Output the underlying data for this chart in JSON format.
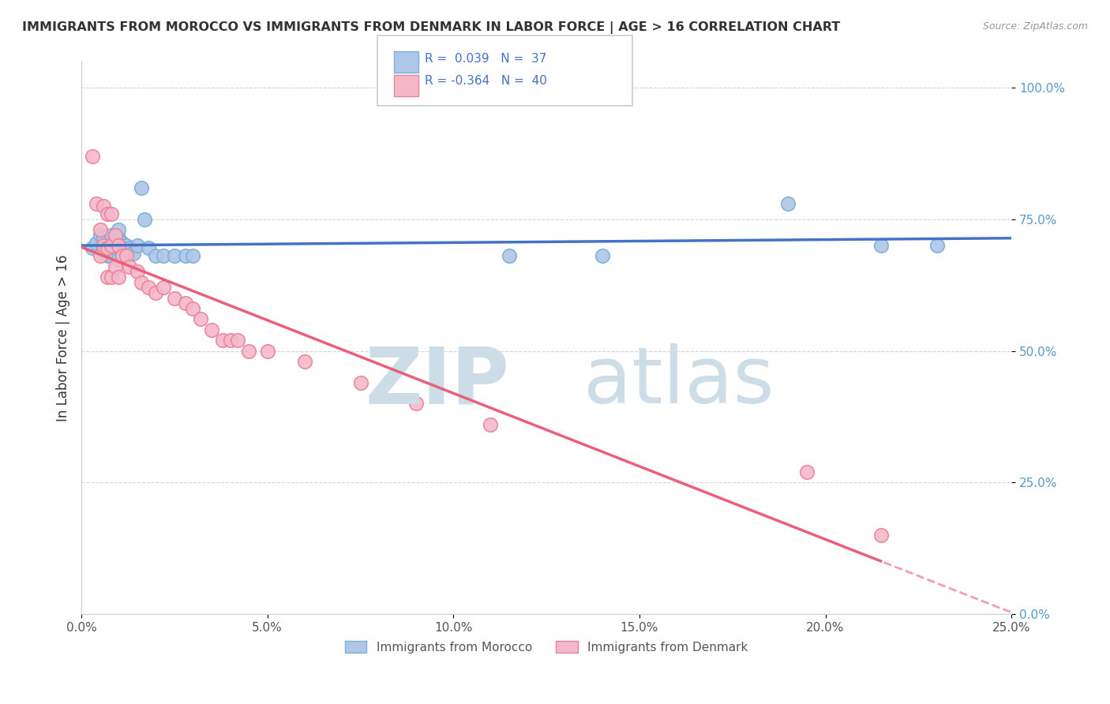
{
  "title": "IMMIGRANTS FROM MOROCCO VS IMMIGRANTS FROM DENMARK IN LABOR FORCE | AGE > 16 CORRELATION CHART",
  "source": "Source: ZipAtlas.com",
  "ylabel": "In Labor Force | Age > 16",
  "xlim": [
    0.0,
    0.25
  ],
  "ylim": [
    0.0,
    1.05
  ],
  "ytick_labels": [
    "0.0%",
    "25.0%",
    "50.0%",
    "75.0%",
    "100.0%"
  ],
  "ytick_values": [
    0.0,
    0.25,
    0.5,
    0.75,
    1.0
  ],
  "xtick_labels": [
    "0.0%",
    "5.0%",
    "10.0%",
    "15.0%",
    "20.0%",
    "25.0%"
  ],
  "xtick_values": [
    0.0,
    0.05,
    0.1,
    0.15,
    0.2,
    0.25
  ],
  "morocco_color": "#aec6e8",
  "morocco_edge": "#7bafd4",
  "denmark_color": "#f4b8c8",
  "denmark_edge": "#e8829a",
  "morocco_R": 0.039,
  "morocco_N": 37,
  "denmark_R": -0.364,
  "denmark_N": 40,
  "watermark_color": "#ccdde8",
  "morocco_line_color": "#4472c4",
  "denmark_line_color": "#e8607a",
  "legend_text_color": "#4472c4",
  "ytick_color": "#5599cc",
  "xtick_color": "#555555",
  "morocco_x": [
    0.003,
    0.004,
    0.005,
    0.006,
    0.006,
    0.007,
    0.007,
    0.008,
    0.008,
    0.008,
    0.009,
    0.009,
    0.009,
    0.01,
    0.01,
    0.01,
    0.01,
    0.011,
    0.011,
    0.012,
    0.012,
    0.013,
    0.014,
    0.015,
    0.016,
    0.017,
    0.018,
    0.02,
    0.022,
    0.025,
    0.028,
    0.03,
    0.115,
    0.14,
    0.19,
    0.215,
    0.23
  ],
  "morocco_y": [
    0.695,
    0.705,
    0.72,
    0.695,
    0.715,
    0.68,
    0.7,
    0.68,
    0.695,
    0.72,
    0.685,
    0.7,
    0.72,
    0.675,
    0.695,
    0.715,
    0.73,
    0.685,
    0.705,
    0.68,
    0.7,
    0.695,
    0.685,
    0.7,
    0.81,
    0.75,
    0.695,
    0.68,
    0.68,
    0.68,
    0.68,
    0.68,
    0.68,
    0.68,
    0.78,
    0.7,
    0.7
  ],
  "denmark_x": [
    0.003,
    0.004,
    0.005,
    0.005,
    0.006,
    0.006,
    0.007,
    0.007,
    0.007,
    0.008,
    0.008,
    0.008,
    0.009,
    0.009,
    0.01,
    0.01,
    0.011,
    0.012,
    0.013,
    0.015,
    0.016,
    0.018,
    0.02,
    0.022,
    0.025,
    0.028,
    0.03,
    0.032,
    0.035,
    0.038,
    0.04,
    0.042,
    0.045,
    0.05,
    0.06,
    0.075,
    0.09,
    0.11,
    0.195,
    0.215
  ],
  "denmark_y": [
    0.87,
    0.78,
    0.73,
    0.68,
    0.775,
    0.7,
    0.76,
    0.695,
    0.64,
    0.76,
    0.7,
    0.64,
    0.72,
    0.66,
    0.7,
    0.64,
    0.68,
    0.68,
    0.66,
    0.65,
    0.63,
    0.62,
    0.61,
    0.62,
    0.6,
    0.59,
    0.58,
    0.56,
    0.54,
    0.52,
    0.52,
    0.52,
    0.5,
    0.5,
    0.48,
    0.44,
    0.4,
    0.36,
    0.27,
    0.15
  ]
}
